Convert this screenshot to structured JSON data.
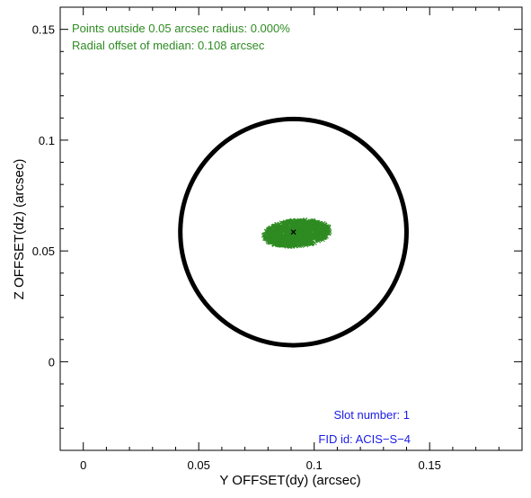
{
  "chart_data": {
    "type": "scatter",
    "title": "",
    "xlabel": "Y OFFSET(dy) (arcsec)",
    "ylabel": "Z OFFSET(dz) (arcsec)",
    "xlim": [
      -0.01,
      0.19
    ],
    "ylim": [
      -0.04,
      0.16
    ],
    "xticks": [
      0,
      0.05,
      0.1,
      0.15
    ],
    "xtick_labels": [
      "0",
      "0.05",
      "0.1",
      "0.15"
    ],
    "yticks": [
      0,
      0.05,
      0.1,
      0.15
    ],
    "ytick_labels": [
      "0",
      "0.05",
      "0.1",
      "0.15"
    ],
    "grid": false,
    "points_color": "#2e8b22",
    "median_color": "#000000",
    "circle_color": "#000000",
    "cluster": {
      "x_range": [
        0.078,
        0.107
      ],
      "y_range": [
        0.052,
        0.064
      ],
      "marker": "x"
    },
    "median": {
      "x": 0.091,
      "y": 0.0585
    },
    "circle": {
      "center_x": 0.091,
      "center_y": 0.0585,
      "radius": 0.05
    },
    "annotations": {
      "points_outside": "Points outside 0.05 arcsec radius: 0.000%",
      "radial_offset": "Radial offset of median: 0.108 arcsec",
      "slot_number": "Slot number: 1",
      "fid_id": "FID id: ACIS−S−4"
    },
    "annotation_colors": {
      "top": "#2e8b22",
      "bottom": "#1a1ae6"
    }
  }
}
